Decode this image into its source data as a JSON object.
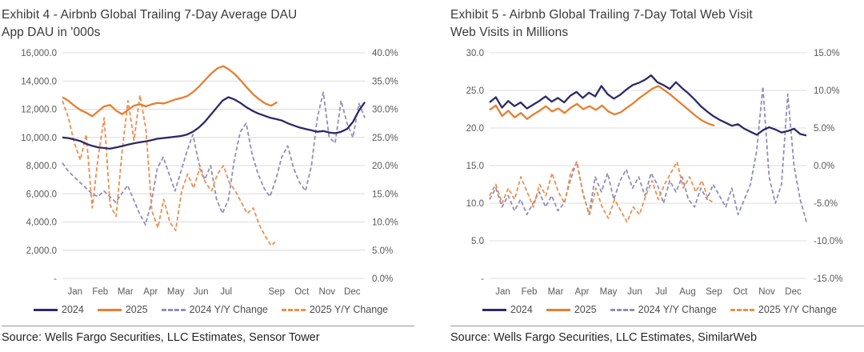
{
  "chart_data": [
    {
      "type": "line",
      "title": "Exhibit 4 - Airbnb Global Trailing 7-Day Average DAU",
      "subtitle": "App DAU in '000s",
      "source": "Source: Wells Fargo Securities, LLC Estimates, Sensor Tower",
      "left_axis": {
        "min": 0,
        "max": 16000,
        "ticks": [
          "16,000.0",
          "14,000.0",
          "12,000.0",
          "10,000.0",
          "8,000.0",
          "6,000.0",
          "4,000.0",
          "2,000.0",
          "-"
        ]
      },
      "right_axis": {
        "min": 0,
        "max": 40,
        "ticks": [
          "40.0%",
          "35.0%",
          "30.0%",
          "25.0%",
          "20.0%",
          "15.0%",
          "10.0%",
          "5.0%",
          "0.0%"
        ]
      },
      "x_ticks": [
        "Jan",
        "Feb",
        "Mar",
        "Apr",
        "May",
        "Jun",
        "Jul",
        "",
        "Sep",
        "Oct",
        "Nov",
        "Dec"
      ],
      "grid": true,
      "legend_position": "bottom",
      "series": [
        {
          "name": "2024",
          "axis": "left",
          "dash": false,
          "color": "#2C2A66",
          "end_fraction": 1.0,
          "values": [
            10000,
            9950,
            9850,
            9750,
            9550,
            9400,
            9300,
            9250,
            9200,
            9280,
            9380,
            9480,
            9580,
            9650,
            9720,
            9800,
            9900,
            9950,
            10000,
            10050,
            10100,
            10200,
            10400,
            10700,
            11100,
            11600,
            12100,
            12600,
            12850,
            12700,
            12450,
            12150,
            11900,
            11700,
            11550,
            11400,
            11300,
            11200,
            11000,
            10850,
            10700,
            10600,
            10500,
            10400,
            10450,
            10350,
            10300,
            10400,
            10600,
            11100,
            11900,
            12500
          ]
        },
        {
          "name": "2025",
          "axis": "left",
          "dash": false,
          "color": "#E87E2F",
          "end_fraction": 0.71,
          "values": [
            12850,
            12600,
            12250,
            11950,
            11750,
            11500,
            11850,
            12200,
            12300,
            11900,
            11650,
            11950,
            12250,
            12350,
            12200,
            12350,
            12450,
            12400,
            12550,
            12700,
            12800,
            12950,
            13250,
            13650,
            14100,
            14550,
            14900,
            15050,
            14800,
            14450,
            14000,
            13500,
            13050,
            12700,
            12400,
            12250,
            12500
          ]
        },
        {
          "name": "2024 Y/Y Change",
          "axis": "right",
          "dash": true,
          "color": "#8E8EBC",
          "end_fraction": 1.0,
          "values": [
            20.5,
            19.0,
            18.0,
            17.0,
            16.0,
            15.0,
            14.5,
            15.5,
            14.5,
            13.5,
            15.0,
            16.5,
            14.0,
            11.5,
            9.5,
            13.5,
            19.5,
            21.5,
            18.5,
            15.5,
            19.0,
            22.5,
            25.5,
            20.5,
            17.5,
            20.0,
            14.0,
            11.5,
            14.0,
            21.0,
            26.0,
            27.5,
            22.0,
            18.5,
            16.0,
            14.5,
            17.5,
            21.5,
            23.5,
            19.5,
            17.0,
            15.5,
            20.0,
            28.5,
            33.0,
            25.0,
            24.0,
            31.5,
            27.5,
            25.0,
            31.0,
            28.5
          ]
        },
        {
          "name": "2025 Y/Y Change",
          "axis": "right",
          "dash": true,
          "color": "#ED8E4D",
          "end_fraction": 0.71,
          "values": [
            31.5,
            28.5,
            24.0,
            21.0,
            25.5,
            12.5,
            21.5,
            28.5,
            13.0,
            11.0,
            22.5,
            31.5,
            24.5,
            32.5,
            26.5,
            12.0,
            9.0,
            14.0,
            10.0,
            8.5,
            15.5,
            18.5,
            16.0,
            19.5,
            17.0,
            15.5,
            18.5,
            20.0,
            17.0,
            15.5,
            13.5,
            11.5,
            12.5,
            9.5,
            7.5,
            5.8,
            6.8
          ]
        }
      ]
    },
    {
      "type": "line",
      "title": "Exhibit 5 - Airbnb Global Trailing 7-Day Total Web Visit",
      "subtitle": "Web Visits in Millions",
      "source": "Source: Wells Fargo Securities, LLC Estimates, SimilarWeb",
      "left_axis": {
        "min": 0,
        "max": 30,
        "ticks": [
          "30.0",
          "25.0",
          "20.0",
          "15.0",
          "10.0",
          "5.0",
          "-"
        ]
      },
      "right_axis": {
        "min": -15,
        "max": 15,
        "ticks": [
          "15.0%",
          "10.0%",
          "5.0%",
          "0.0%",
          "-5.0%",
          "-10.0%",
          "-15.0%"
        ]
      },
      "x_ticks": [
        "Jan",
        "Feb",
        "Mar",
        "Apr",
        "May",
        "Jun",
        "Jul",
        "Aug",
        "Sep",
        "Oct",
        "Nov",
        "Dec"
      ],
      "grid": true,
      "legend_position": "bottom",
      "series": [
        {
          "name": "2024",
          "axis": "left",
          "dash": false,
          "color": "#2C2A66",
          "end_fraction": 1.0,
          "values": [
            23.4,
            24.1,
            22.7,
            23.6,
            22.9,
            23.4,
            22.6,
            23.1,
            23.6,
            24.2,
            23.5,
            24.0,
            23.4,
            24.3,
            24.8,
            24.0,
            24.7,
            24.2,
            25.6,
            24.5,
            23.9,
            24.4,
            25.1,
            25.7,
            26.0,
            26.4,
            27.0,
            26.1,
            25.7,
            25.2,
            26.1,
            25.3,
            24.6,
            23.8,
            22.9,
            22.2,
            21.6,
            21.1,
            20.7,
            20.3,
            20.5,
            19.9,
            19.5,
            19.1,
            19.7,
            20.1,
            19.8,
            19.4,
            19.6,
            19.9,
            19.2,
            19.0
          ]
        },
        {
          "name": "2025",
          "axis": "left",
          "dash": false,
          "color": "#E87E2F",
          "end_fraction": 0.71,
          "values": [
            22.4,
            23.0,
            21.6,
            22.3,
            21.4,
            22.0,
            21.2,
            21.8,
            22.3,
            22.9,
            22.2,
            22.6,
            22.0,
            22.7,
            23.2,
            22.5,
            22.9,
            22.4,
            23.0,
            22.2,
            21.8,
            22.1,
            22.7,
            23.3,
            24.0,
            24.6,
            25.2,
            25.6,
            25.0,
            24.4,
            23.7,
            23.0,
            22.3,
            21.6,
            21.0,
            20.6,
            20.3
          ]
        },
        {
          "name": "2024 Y/Y Change",
          "axis": "right",
          "dash": true,
          "color": "#8E8EBC",
          "end_fraction": 1.0,
          "values": [
            -4.5,
            -3.0,
            -5.5,
            -4.0,
            -6.0,
            -4.5,
            -6.5,
            -5.0,
            -3.5,
            -5.5,
            -4.0,
            -6.0,
            -5.0,
            -2.0,
            0.5,
            -3.5,
            -6.5,
            -1.5,
            -3.5,
            -1.0,
            -4.5,
            -2.0,
            -0.5,
            -3.0,
            -1.5,
            -4.0,
            -1.0,
            -2.5,
            -5.0,
            -2.0,
            -3.5,
            -1.5,
            -4.5,
            -5.5,
            -3.0,
            -4.5,
            -2.5,
            -4.0,
            -5.5,
            -3.0,
            -6.5,
            -4.5,
            -2.5,
            2.0,
            10.5,
            -1.5,
            -5.0,
            -2.5,
            9.5,
            0.0,
            -4.5,
            -7.5
          ]
        },
        {
          "name": "2025 Y/Y Change",
          "axis": "right",
          "dash": true,
          "color": "#ED8E4D",
          "end_fraction": 0.71,
          "values": [
            -4.0,
            -2.5,
            -5.0,
            -3.0,
            -4.5,
            -1.5,
            -3.5,
            -5.5,
            -2.5,
            -4.0,
            -1.0,
            -3.5,
            -5.0,
            -1.0,
            0.5,
            -4.0,
            -6.5,
            -3.0,
            -5.5,
            -7.0,
            -4.5,
            -6.0,
            -7.5,
            -5.5,
            -6.5,
            -4.0,
            -2.0,
            -4.5,
            -2.5,
            -1.0,
            0.5,
            -3.0,
            -1.5,
            -3.5,
            -2.0,
            -4.5,
            -5.0
          ]
        }
      ]
    }
  ]
}
